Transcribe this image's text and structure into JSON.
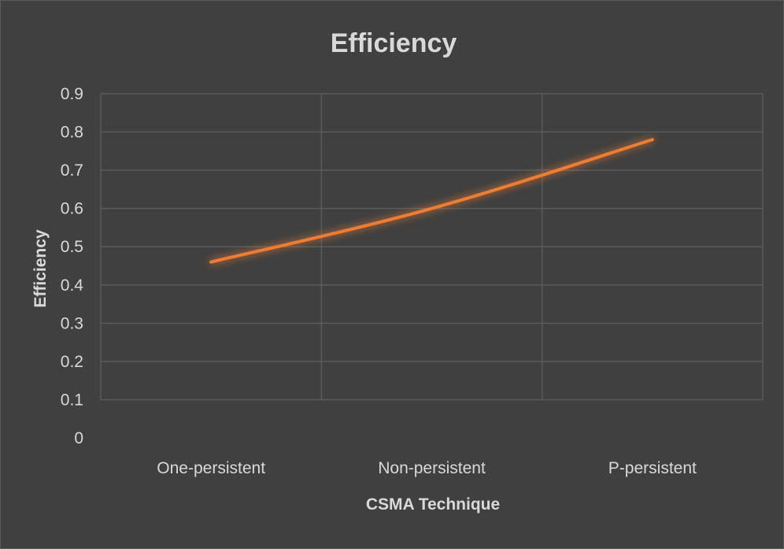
{
  "chart_data": {
    "type": "line",
    "title": "Efficiency",
    "xlabel": "CSMA Technique",
    "ylabel": "Efficiency",
    "categories": [
      "One-persistent",
      "Non-persistent",
      "P-persistent"
    ],
    "series": [
      {
        "values": [
          0.46,
          0.6,
          0.78
        ]
      }
    ],
    "ylim": [
      0,
      0.9
    ],
    "yticks": [
      "0",
      "0.1",
      "0.2",
      "0.3",
      "0.4",
      "0.5",
      "0.6",
      "0.7",
      "0.8",
      "0.9"
    ],
    "grid": true,
    "line_color": "#ed7d31",
    "background_color": "#404040",
    "text_color": "#d9d9d9",
    "grid_color": "#5b5b5b"
  }
}
